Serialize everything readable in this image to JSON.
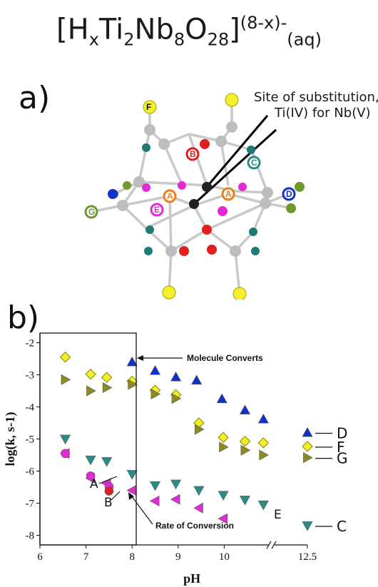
{
  "formula": {
    "prefix": "[H",
    "sub_x": "x",
    "ti": "Ti",
    "sub_2": "2",
    "nb": "Nb",
    "sub_8": "8",
    "o": "O",
    "sub_28": "28",
    "bracket": "]",
    "charge": "(8-x)-",
    "phase": "(aq)"
  },
  "panel_a": {
    "label": "a)",
    "annotation_line1": "Site of substitution,",
    "annotation_line2": "Ti(IV) for Nb(V)",
    "atom_labels": [
      "F",
      "B",
      "C",
      "A",
      "D",
      "E",
      "G",
      "A"
    ]
  },
  "panel_b": {
    "label": "b)",
    "box_annotation": "Molecule Converts",
    "rate_annotation": "Rate of Conversion"
  },
  "colors": {
    "D": "#1330c8",
    "F": "#f2ef28",
    "G": "#8c8a24",
    "C": "#2a8c86",
    "E": "#e22ad6",
    "A": "#e22ad6",
    "B": "#e02020",
    "teal_atom": "#1e7a74",
    "orange_atom": "#ef7e1d",
    "green_atom": "#6e9a2c"
  },
  "chart_data": {
    "type": "scatter",
    "title": "",
    "xlabel": "pH",
    "ylabel": "log(k, s-1)",
    "xlim": [
      6,
      12.5
    ],
    "ylim": [
      -8.3,
      -1.7
    ],
    "x_ticks": [
      "6",
      "7",
      "8",
      "9",
      "10",
      "12.5"
    ],
    "y_ticks": [
      "-2",
      "-3",
      "-4",
      "-5",
      "-6",
      "-7",
      "-8"
    ],
    "axis_break": "between 11 and 12.5",
    "series": [
      {
        "name": "D",
        "marker": "triangle-up",
        "points": [
          [
            8.0,
            -2.6
          ],
          [
            8.5,
            -2.87
          ],
          [
            8.95,
            -3.07
          ],
          [
            9.4,
            -3.17
          ],
          [
            9.95,
            -3.75
          ],
          [
            10.45,
            -4.1
          ],
          [
            10.85,
            -4.38
          ],
          [
            12.5,
            -4.8
          ]
        ]
      },
      {
        "name": "F",
        "marker": "diamond",
        "points": [
          [
            6.55,
            -2.45
          ],
          [
            7.1,
            -2.98
          ],
          [
            7.45,
            -3.08
          ],
          [
            8.0,
            -3.2
          ],
          [
            8.5,
            -3.48
          ],
          [
            8.95,
            -3.62
          ],
          [
            9.45,
            -4.5
          ],
          [
            9.98,
            -4.95
          ],
          [
            10.45,
            -5.07
          ],
          [
            10.85,
            -5.12
          ],
          [
            12.5,
            -5.23
          ]
        ]
      },
      {
        "name": "G",
        "marker": "triangle-right",
        "points": [
          [
            6.55,
            -3.15
          ],
          [
            7.1,
            -3.5
          ],
          [
            7.45,
            -3.4
          ],
          [
            8.0,
            -3.3
          ],
          [
            8.5,
            -3.6
          ],
          [
            8.95,
            -3.74
          ],
          [
            9.45,
            -4.7
          ],
          [
            9.98,
            -5.25
          ],
          [
            10.45,
            -5.35
          ],
          [
            10.85,
            -5.5
          ],
          [
            12.5,
            -5.58
          ]
        ]
      },
      {
        "name": "C",
        "marker": "triangle-down",
        "points": [
          [
            6.55,
            -5.0
          ],
          [
            7.1,
            -5.65
          ],
          [
            7.45,
            -5.7
          ],
          [
            8.0,
            -6.1
          ],
          [
            8.5,
            -6.45
          ],
          [
            8.95,
            -6.4
          ],
          [
            9.45,
            -6.6
          ],
          [
            9.98,
            -6.75
          ],
          [
            10.45,
            -6.9
          ],
          [
            10.85,
            -7.05
          ],
          [
            12.5,
            -7.7
          ]
        ]
      },
      {
        "name": "E",
        "marker": "triangle-left",
        "points": [
          [
            6.55,
            -5.45
          ],
          [
            7.1,
            -6.22
          ],
          [
            7.45,
            -6.38
          ],
          [
            8.0,
            -6.6
          ],
          [
            8.5,
            -6.93
          ],
          [
            8.95,
            -6.88
          ],
          [
            9.45,
            -7.15
          ],
          [
            9.98,
            -7.48
          ]
        ]
      },
      {
        "name": "A",
        "marker": "circle",
        "points": [
          [
            6.55,
            -5.45
          ],
          [
            7.1,
            -6.15
          ],
          [
            7.5,
            -6.48
          ]
        ]
      },
      {
        "name": "B",
        "marker": "circle",
        "points": [
          [
            7.5,
            -6.62
          ]
        ]
      }
    ],
    "legend": [
      "D",
      "F",
      "G",
      "C"
    ]
  }
}
